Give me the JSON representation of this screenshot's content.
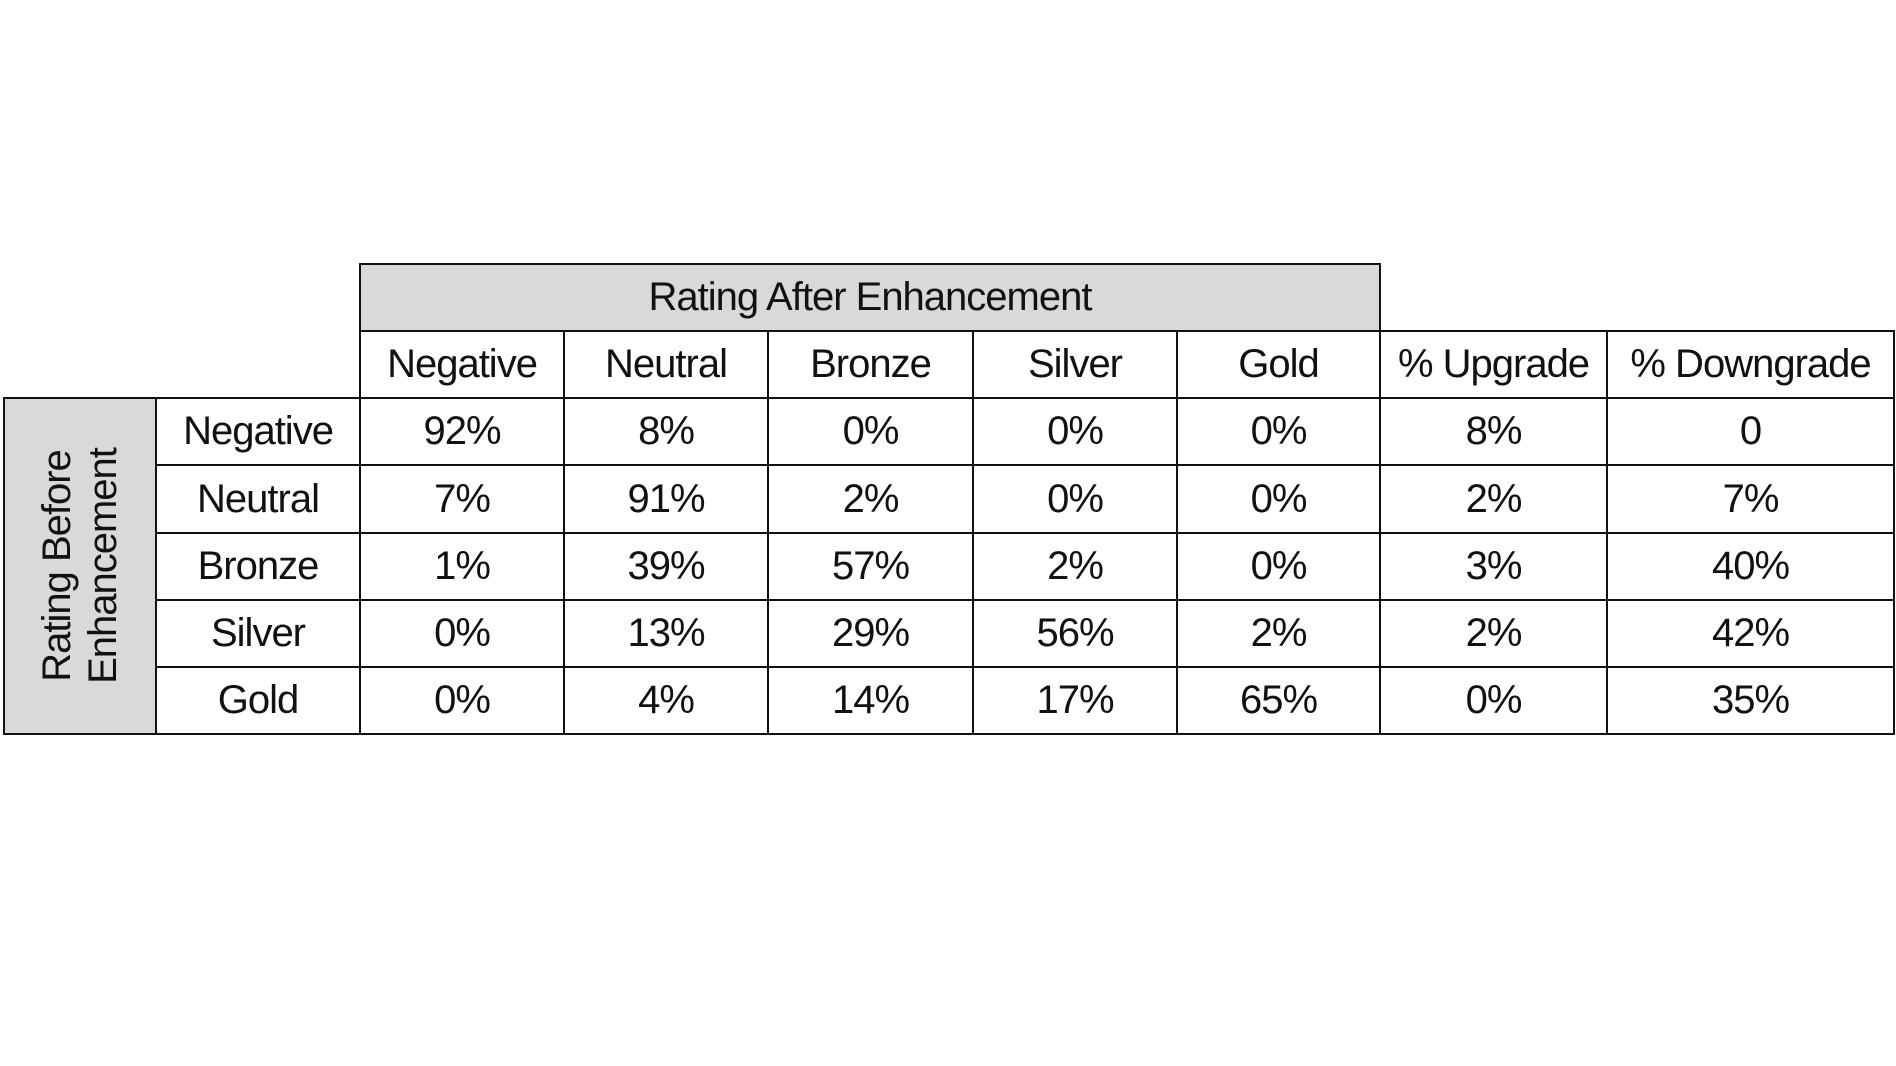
{
  "table": {
    "col_group_header": "Rating After Enhancement",
    "row_group_header_line1": "Rating Before",
    "row_group_header_line2": "Enhancement",
    "columns": [
      "Negative",
      "Neutral",
      "Bronze",
      "Silver",
      "Gold",
      "% Upgrade",
      "% Downgrade"
    ],
    "rows": [
      {
        "label": "Negative",
        "values": [
          "92%",
          "8%",
          "0%",
          "0%",
          "0%",
          "8%",
          "0"
        ]
      },
      {
        "label": "Neutral",
        "values": [
          "7%",
          "91%",
          "2%",
          "0%",
          "0%",
          "2%",
          "7%"
        ]
      },
      {
        "label": "Bronze",
        "values": [
          "1%",
          "39%",
          "57%",
          "2%",
          "0%",
          "3%",
          "40%"
        ]
      },
      {
        "label": "Silver",
        "values": [
          "0%",
          "13%",
          "29%",
          "56%",
          "2%",
          "2%",
          "42%"
        ]
      },
      {
        "label": "Gold",
        "values": [
          "0%",
          "4%",
          "14%",
          "17%",
          "65%",
          "0%",
          "35%"
        ]
      }
    ]
  },
  "colors": {
    "header_fill": "#d9d9d9",
    "border": "#111111",
    "background": "#ffffff"
  }
}
